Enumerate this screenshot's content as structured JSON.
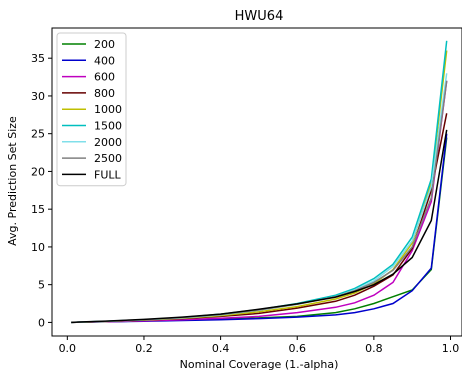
{
  "chart_data": {
    "type": "line",
    "title": "HWU64",
    "xlabel": "Nominal Coverage (1.-alpha)",
    "ylabel": "Avg. Prediction Set Size",
    "xlim": [
      -0.04,
      1.03
    ],
    "ylim": [
      -1.8,
      39
    ],
    "x_ticks": [
      0.0,
      0.2,
      0.4,
      0.6,
      0.8,
      1.0
    ],
    "x_tick_labels": [
      "0.0",
      "0.2",
      "0.4",
      "0.6",
      "0.8",
      "1.0"
    ],
    "y_ticks": [
      0,
      5,
      10,
      15,
      20,
      25,
      30,
      35
    ],
    "y_tick_labels": [
      "0",
      "5",
      "10",
      "15",
      "20",
      "25",
      "30",
      "35"
    ],
    "grid": false,
    "legend_position": "upper-left",
    "x": [
      0.01,
      0.05,
      0.1,
      0.2,
      0.3,
      0.4,
      0.5,
      0.6,
      0.7,
      0.75,
      0.8,
      0.85,
      0.9,
      0.95,
      0.99
    ],
    "series": [
      {
        "name": "200",
        "color": "#008000",
        "values": [
          0.0,
          0.05,
          0.1,
          0.2,
          0.3,
          0.4,
          0.6,
          0.8,
          1.3,
          1.8,
          2.5,
          3.4,
          4.3,
          7.0,
          24.5
        ]
      },
      {
        "name": "400",
        "color": "#0000cc",
        "values": [
          0.0,
          0.05,
          0.1,
          0.15,
          0.25,
          0.35,
          0.5,
          0.7,
          1.0,
          1.3,
          1.8,
          2.5,
          4.2,
          7.2,
          25.0
        ]
      },
      {
        "name": "600",
        "color": "#bf00bf",
        "values": [
          0.0,
          0.05,
          0.1,
          0.2,
          0.35,
          0.55,
          0.8,
          1.3,
          2.0,
          2.6,
          3.6,
          5.3,
          9.5,
          16.0,
          32.0
        ]
      },
      {
        "name": "800",
        "color": "#660000",
        "values": [
          0.0,
          0.06,
          0.12,
          0.3,
          0.5,
          0.8,
          1.2,
          1.9,
          2.8,
          3.6,
          4.8,
          6.3,
          9.8,
          17.5,
          27.7
        ]
      },
      {
        "name": "1000",
        "color": "#bfbf00",
        "values": [
          0.0,
          0.06,
          0.13,
          0.3,
          0.55,
          0.9,
          1.4,
          2.1,
          3.1,
          3.9,
          5.1,
          7.0,
          10.5,
          18.5,
          36.0
        ]
      },
      {
        "name": "1500",
        "color": "#00bfbf",
        "values": [
          0.0,
          0.07,
          0.15,
          0.35,
          0.65,
          1.1,
          1.7,
          2.5,
          3.6,
          4.5,
          5.8,
          7.7,
          11.3,
          19.0,
          37.3
        ]
      },
      {
        "name": "2000",
        "color": "#80dfea",
        "values": [
          0.0,
          0.07,
          0.14,
          0.35,
          0.6,
          1.0,
          1.6,
          2.4,
          3.4,
          4.3,
          5.5,
          7.4,
          10.8,
          18.0,
          33.0
        ]
      },
      {
        "name": "2500",
        "color": "#808080",
        "values": [
          0.0,
          0.07,
          0.14,
          0.35,
          0.65,
          1.05,
          1.65,
          2.4,
          3.4,
          4.2,
          5.3,
          6.9,
          10.0,
          16.5,
          32.0
        ]
      },
      {
        "name": "FULL",
        "color": "#000000",
        "values": [
          0.0,
          0.08,
          0.17,
          0.4,
          0.7,
          1.1,
          1.75,
          2.45,
          3.35,
          4.1,
          5.0,
          6.4,
          8.6,
          13.5,
          25.5
        ]
      }
    ]
  }
}
